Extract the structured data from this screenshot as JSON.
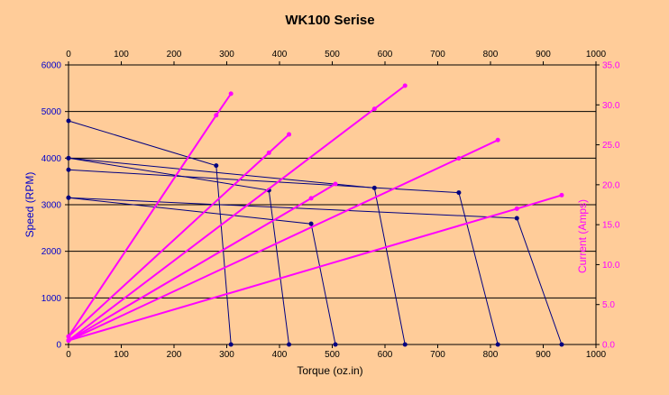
{
  "chart_data": {
    "type": "line",
    "title": "WK100 Serise",
    "xlabel": "Torque (oz.in)",
    "ylabel": "Speed (RPM)",
    "y2label": "Current (Amps)",
    "xlim": [
      0,
      1000
    ],
    "ylim": [
      0,
      6000
    ],
    "y2lim": [
      0,
      35
    ],
    "xticks": [
      "0",
      "100",
      "200",
      "300",
      "400",
      "500",
      "600",
      "700",
      "800",
      "900",
      "1000"
    ],
    "yticks": [
      "0",
      "1000",
      "2000",
      "3000",
      "4000",
      "5000",
      "6000"
    ],
    "y2ticks": [
      "0.0",
      "5.0",
      "10.0",
      "15.0",
      "20.0",
      "25.0",
      "30.0",
      "35.0"
    ],
    "grid": "horizontal major gridlines",
    "colors": {
      "background": "#FFCC99",
      "speed": "#000080",
      "current": "#FF00FF",
      "left_axis_text": "#0000CC",
      "right_axis_text": "#FF00FF"
    },
    "speed_series": [
      {
        "x": [
          0,
          280,
          308
        ],
        "y": [
          4800,
          3840,
          0
        ]
      },
      {
        "x": [
          0,
          380,
          418
        ],
        "y": [
          4000,
          3310,
          0
        ]
      },
      {
        "x": [
          0,
          460,
          506
        ],
        "y": [
          3150,
          2590,
          0
        ]
      },
      {
        "x": [
          0,
          580,
          638
        ],
        "y": [
          4000,
          3360,
          0
        ]
      },
      {
        "x": [
          0,
          740,
          814
        ],
        "y": [
          3750,
          3260,
          0
        ]
      },
      {
        "x": [
          0,
          850,
          935
        ],
        "y": [
          3150,
          2710,
          0
        ]
      }
    ],
    "current_series": [
      {
        "x": [
          0,
          280,
          308
        ],
        "y": [
          1.0,
          28.7,
          31.4
        ]
      },
      {
        "x": [
          0,
          380,
          418
        ],
        "y": [
          1.0,
          24.0,
          26.3
        ]
      },
      {
        "x": [
          0,
          460,
          506
        ],
        "y": [
          0.5,
          18.3,
          20.1
        ]
      },
      {
        "x": [
          0,
          580,
          638
        ],
        "y": [
          0.5,
          29.5,
          32.4
        ]
      },
      {
        "x": [
          0,
          740,
          814
        ],
        "y": [
          0.5,
          23.3,
          25.6
        ]
      },
      {
        "x": [
          0,
          850,
          935
        ],
        "y": [
          0.5,
          17.0,
          18.7
        ]
      }
    ]
  }
}
